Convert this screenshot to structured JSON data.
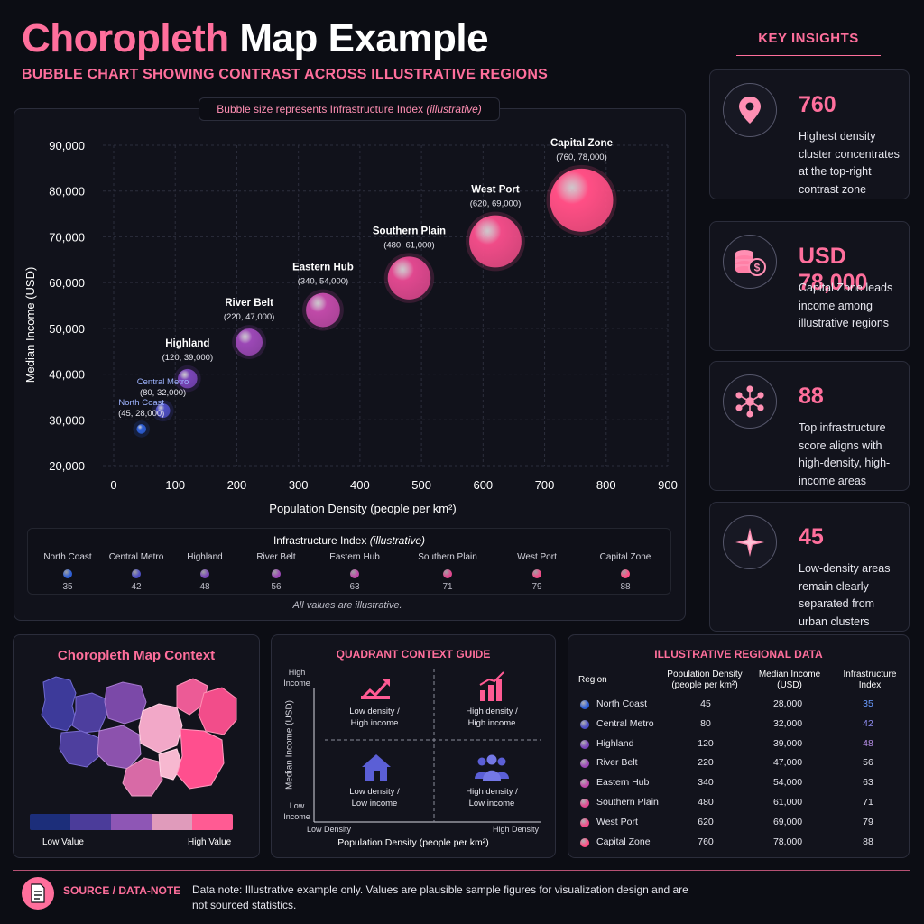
{
  "header": {
    "title_accent": "Choropleth",
    "title_rest": "Map Example",
    "subtitle": "BUBBLE CHART SHOWING CONTRAST ACROSS ILLUSTRATIVE REGIONS"
  },
  "colors": {
    "accent": "#ff6f9c",
    "background": "#0c0d14",
    "scale": [
      "#1c2e7a",
      "#4b3c9a",
      "#8e56b5",
      "#e09bbb",
      "#ff5b93"
    ]
  },
  "chart_note": {
    "text": "Bubble size represents Infrastructure Index ",
    "italic": "(illustrative)"
  },
  "chart_data": {
    "type": "scatter",
    "xlabel": "Population Density (people per km²)",
    "ylabel": "Median Income (USD)",
    "xlim": [
      0,
      900
    ],
    "ylim": [
      20000,
      90000
    ],
    "xticks": [
      0,
      100,
      200,
      300,
      400,
      500,
      600,
      700,
      800,
      900
    ],
    "yticks": [
      "20,000",
      "30,000",
      "40,000",
      "50,000",
      "60,000",
      "70,000",
      "80,000",
      "90,000"
    ],
    "ytick_values": [
      20000,
      30000,
      40000,
      50000,
      60000,
      70000,
      80000,
      90000
    ],
    "size_variable": "Infrastructure Index",
    "grid": true,
    "points": [
      {
        "name": "North Coast",
        "label": "(45, 28,000)",
        "x": 45,
        "y": 28000,
        "size": 35,
        "color": "#2e5fd6"
      },
      {
        "name": "Central Metro",
        "label": "(80, 32,000)",
        "x": 80,
        "y": 32000,
        "size": 42,
        "color": "#4e4fc4"
      },
      {
        "name": "Highland",
        "label": "(120, 39,000)",
        "x": 120,
        "y": 39000,
        "size": 48,
        "color": "#7a45b8"
      },
      {
        "name": "River Belt",
        "label": "(220, 47,000)",
        "x": 220,
        "y": 47000,
        "size": 56,
        "color": "#9c48b6"
      },
      {
        "name": "Eastern Hub",
        "label": "(340, 54,000)",
        "x": 340,
        "y": 54000,
        "size": 63,
        "color": "#c04aa8"
      },
      {
        "name": "Southern Plain",
        "label": "(480, 61,000)",
        "x": 480,
        "y": 61000,
        "size": 71,
        "color": "#e0488f"
      },
      {
        "name": "West Port",
        "label": "(620, 69,000)",
        "x": 620,
        "y": 69000,
        "size": 79,
        "color": "#f04c88"
      },
      {
        "name": "Capital Zone",
        "label": "(760, 78,000)",
        "x": 760,
        "y": 78000,
        "size": 88,
        "color": "#ff4f85"
      }
    ]
  },
  "legend": {
    "title": "Infrastructure Index ",
    "title_italic": "(illustrative)",
    "note": "All values are illustrative."
  },
  "insights": {
    "heading": "KEY INSIGHTS",
    "cards": [
      {
        "value": "760",
        "text": "Highest density cluster concentrates at the top-right contrast zone",
        "icon": "location-pin-icon"
      },
      {
        "value": "USD 78,000",
        "text": "Capital Zone leads income among illustrative regions",
        "icon": "coins-dollar-icon"
      },
      {
        "value": "88",
        "text": "Top infrastructure score aligns with high-density, high-income areas",
        "icon": "network-hub-icon"
      },
      {
        "value": "45",
        "text": "Low-density areas remain clearly separated from urban clusters",
        "icon": "compass-star-icon"
      }
    ]
  },
  "map_panel": {
    "title": "Choropleth Map Context",
    "low": "Low Value",
    "high": "High Value"
  },
  "quadrant": {
    "title": "QUADRANT CONTEXT GUIDE",
    "y_high": "High\nIncome",
    "y_low": "Low\nIncome",
    "y_label": "Median Income (USD)",
    "x_low": "Low Density",
    "x_high": "High Density",
    "x_label": "Population Density (people per km²)",
    "q_tl": "Low density /\nHigh income",
    "q_tr": "High density /\nHigh income",
    "q_bl": "Low density /\nLow income",
    "q_br": "High density /\nLow income"
  },
  "table": {
    "title": "ILLUSTRATIVE REGIONAL DATA",
    "headers": [
      "Region",
      "Population Density\n(people per km²)",
      "Median Income\n(USD)",
      "Infrastructure\nIndex"
    ],
    "rows": [
      {
        "region": "North Coast",
        "pop": "45",
        "income": "28,000",
        "index": "35"
      },
      {
        "region": "Central Metro",
        "pop": "80",
        "income": "32,000",
        "index": "42"
      },
      {
        "region": "Highland",
        "pop": "120",
        "income": "39,000",
        "index": "48"
      },
      {
        "region": "River Belt",
        "pop": "220",
        "income": "47,000",
        "index": "56"
      },
      {
        "region": "Eastern Hub",
        "pop": "340",
        "income": "54,000",
        "index": "63"
      },
      {
        "region": "Southern Plain",
        "pop": "480",
        "income": "61,000",
        "index": "71"
      },
      {
        "region": "West Port",
        "pop": "620",
        "income": "69,000",
        "index": "79"
      },
      {
        "region": "Capital Zone",
        "pop": "760",
        "income": "78,000",
        "index": "88"
      }
    ],
    "index_colors": [
      "#6a9bff",
      "#8f8cf0",
      "#b68ee6",
      "#e6e6ee",
      "#e6e6ee",
      "#e6e6ee",
      "#e6e6ee",
      "#e6e6ee"
    ]
  },
  "footer": {
    "label": "SOURCE / DATA-NOTE",
    "text": "Data note: Illustrative example only. Values are plausible sample figures for visualization design and are not sourced statistics."
  }
}
